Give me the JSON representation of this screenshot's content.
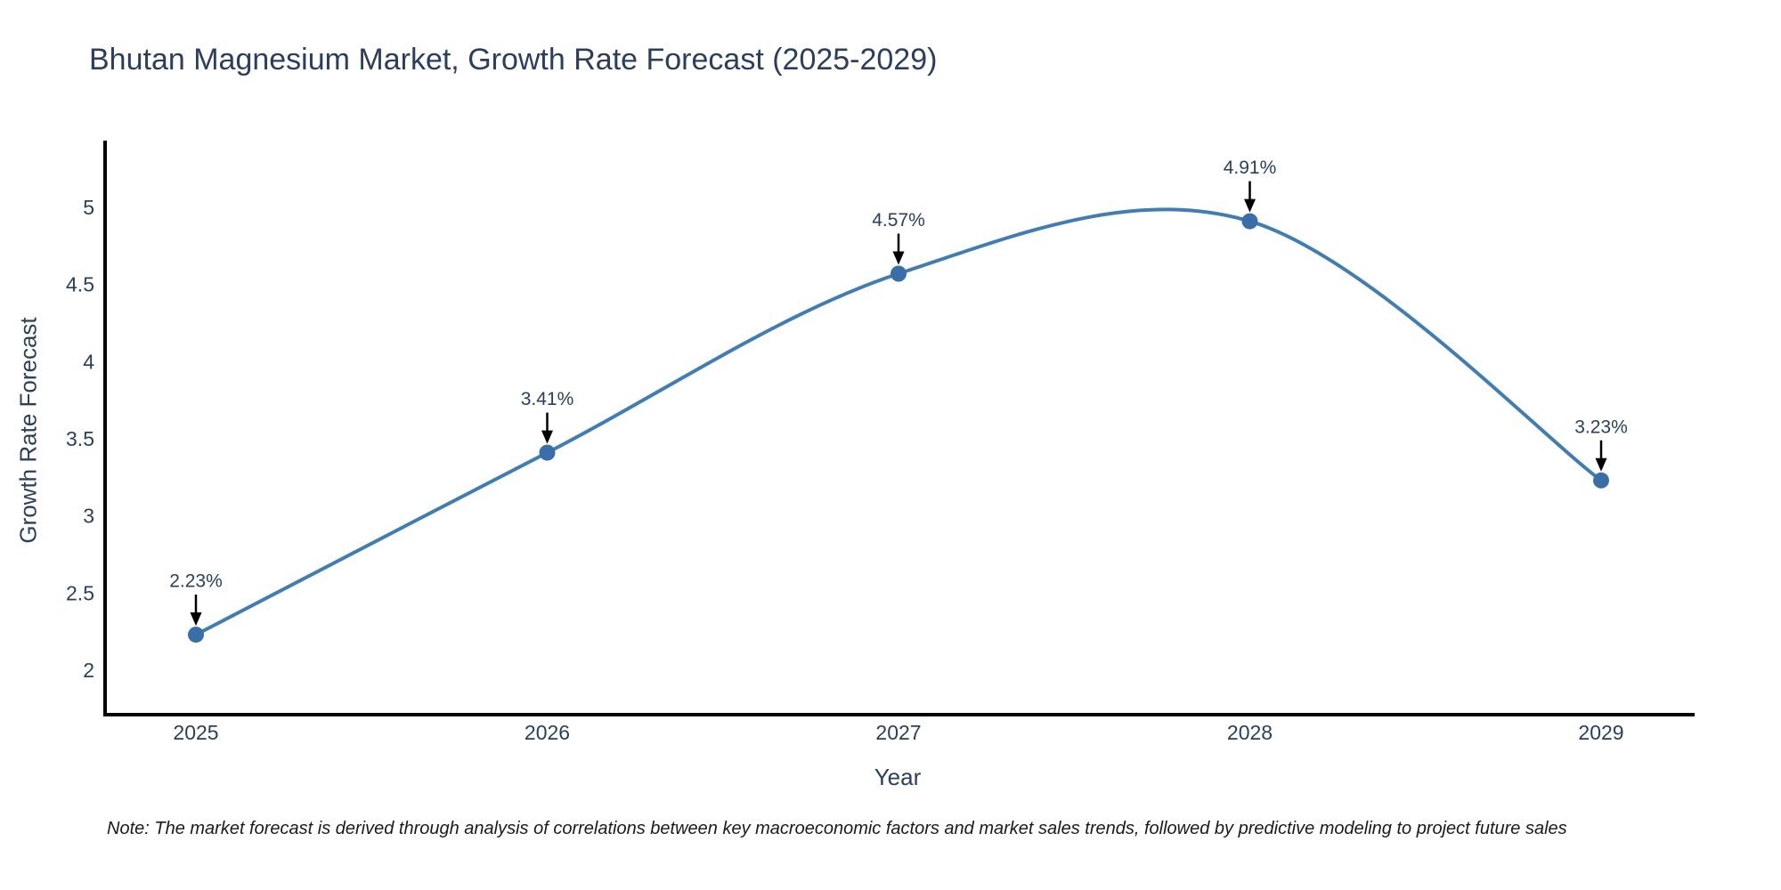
{
  "note": "Note: The market forecast is derived through analysis of correlations between key macroeconomic factors and market sales trends, followed by predictive modeling to project future sales",
  "chart_data": {
    "type": "line",
    "title": "Bhutan Magnesium Market, Growth Rate Forecast (2025-2029)",
    "xlabel": "Year",
    "ylabel": "Growth Rate Forecast",
    "categories": [
      "2025",
      "2026",
      "2027",
      "2028",
      "2029"
    ],
    "series": [
      {
        "name": "Growth Rate Forecast",
        "values": [
          2.23,
          3.41,
          4.57,
          4.91,
          3.23
        ]
      }
    ],
    "point_labels": [
      "2.23%",
      "3.41%",
      "4.57%",
      "4.91%",
      "3.23%"
    ],
    "y_ticks": [
      "2",
      "2.5",
      "3",
      "3.5",
      "4",
      "4.5",
      "5"
    ],
    "ylim": [
      1.71,
      5.43
    ],
    "grid": false,
    "legend_position": "none",
    "line_shape": "spline",
    "colors": {
      "line": "#3f7db8",
      "marker": "#386fa9",
      "axis": "#000000",
      "tick_text": "#2a3f5f",
      "annotation_text": "#2a3f5f",
      "arrow": "#000000"
    }
  }
}
